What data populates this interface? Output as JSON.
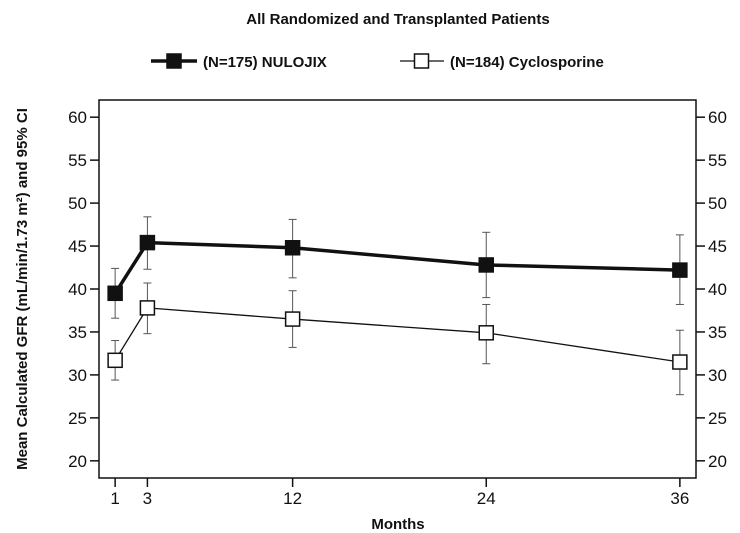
{
  "chart_data": {
    "type": "line",
    "title": "All Randomized and Transplanted Patients",
    "xlabel": "Months",
    "ylabel": "Mean Calculated GFR (mL/min/1.73 m²) and 95% CI",
    "xlim": [
      0,
      37
    ],
    "ylim": [
      18,
      62
    ],
    "x_ticks": [
      1,
      3,
      12,
      24,
      36
    ],
    "y_ticks": [
      20,
      25,
      30,
      35,
      40,
      45,
      50,
      55,
      60
    ],
    "legend_position": "top",
    "series": [
      {
        "name": "(N=175) NULOJIX",
        "marker": "filled-square",
        "color": "#111111",
        "line_weight": "bold",
        "points": [
          {
            "x": 1,
            "y": 39.5,
            "ci_low": 36.6,
            "ci_high": 42.4
          },
          {
            "x": 3,
            "y": 45.4,
            "ci_low": 42.3,
            "ci_high": 48.4
          },
          {
            "x": 12,
            "y": 44.8,
            "ci_low": 41.3,
            "ci_high": 48.1
          },
          {
            "x": 24,
            "y": 42.8,
            "ci_low": 39.0,
            "ci_high": 46.6
          },
          {
            "x": 36,
            "y": 42.2,
            "ci_low": 38.2,
            "ci_high": 46.3
          }
        ]
      },
      {
        "name": "(N=184) Cyclosporine",
        "marker": "open-square",
        "color": "#111111",
        "line_weight": "thin",
        "points": [
          {
            "x": 1,
            "y": 31.7,
            "ci_low": 29.4,
            "ci_high": 34.0
          },
          {
            "x": 3,
            "y": 37.8,
            "ci_low": 34.8,
            "ci_high": 40.7
          },
          {
            "x": 12,
            "y": 36.5,
            "ci_low": 33.2,
            "ci_high": 39.8
          },
          {
            "x": 24,
            "y": 34.9,
            "ci_low": 31.3,
            "ci_high": 38.2
          },
          {
            "x": 36,
            "y": 31.5,
            "ci_low": 27.7,
            "ci_high": 35.2
          }
        ]
      }
    ]
  }
}
